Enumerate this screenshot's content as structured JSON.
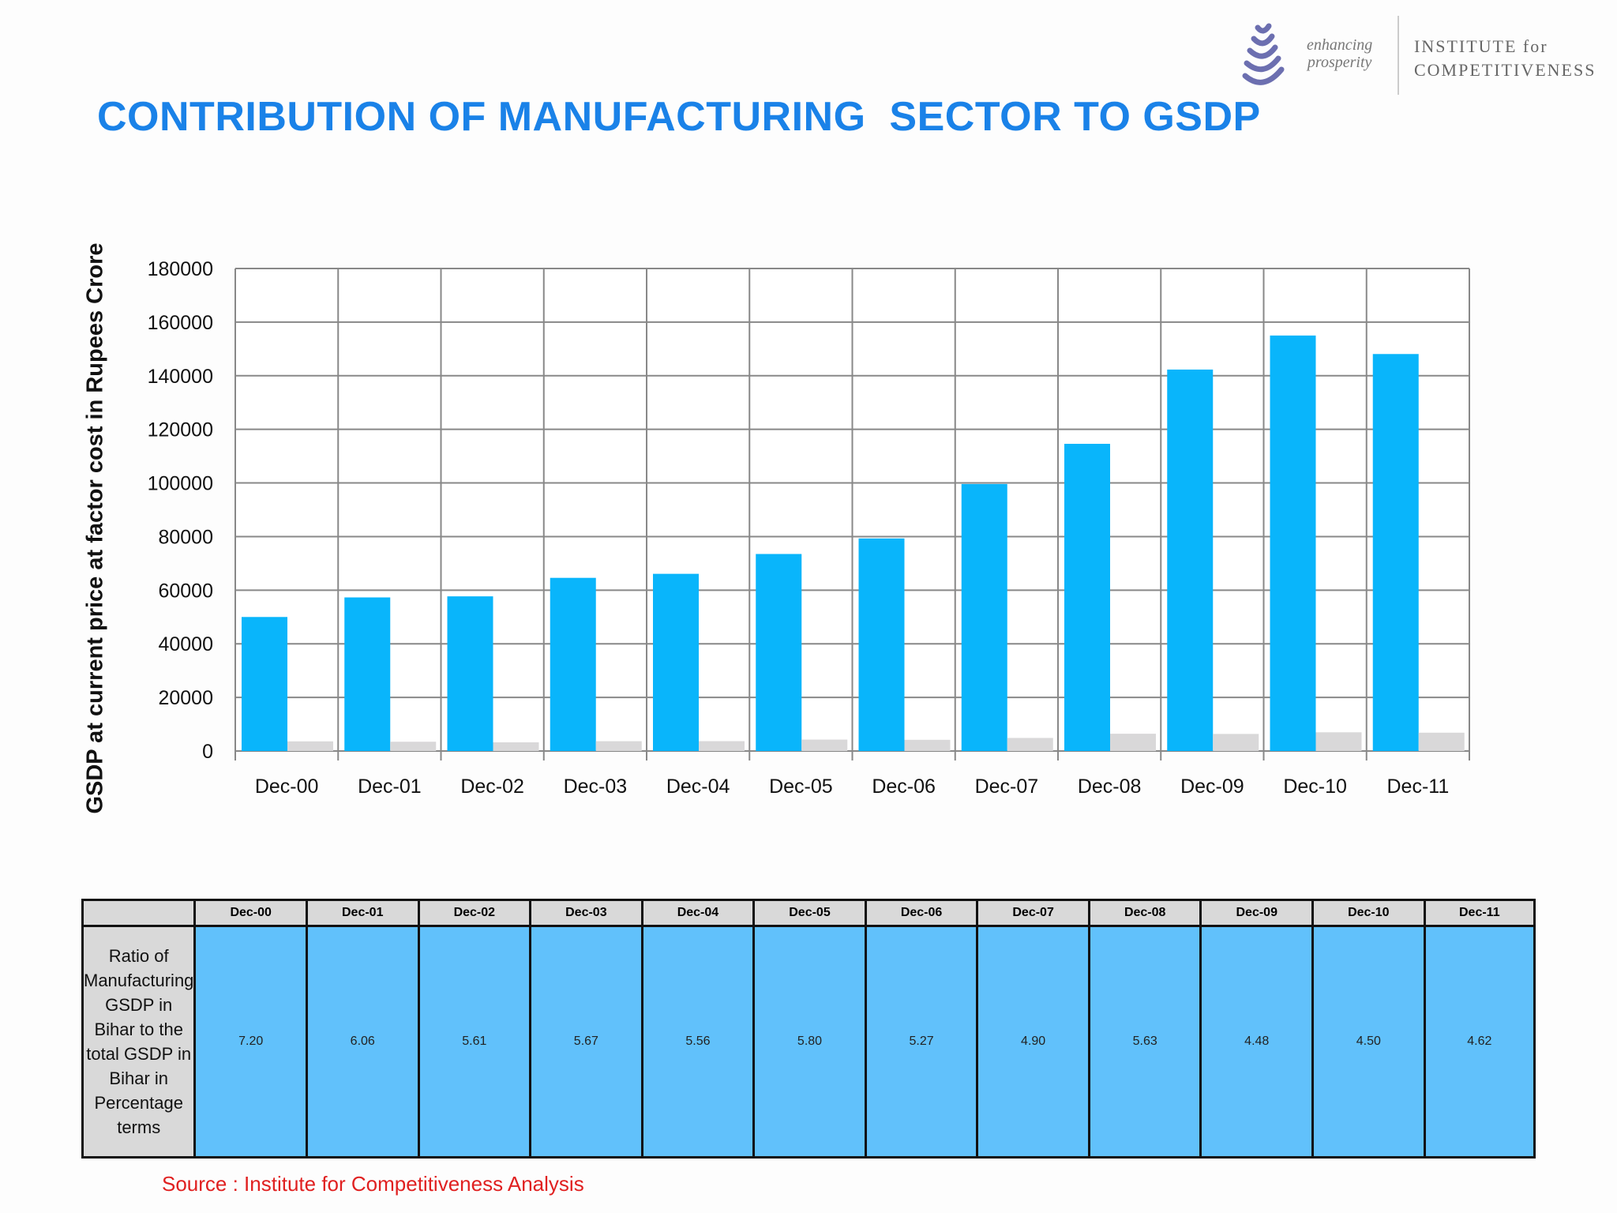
{
  "title": "CONTRIBUTION OF MANUFACTURING  SECTOR TO GSDP",
  "logo": {
    "tagline_1": "enhancing",
    "tagline_2": "prosperity",
    "name_1": "INSTITUTE for",
    "name_2": "COMPETITIVENESS"
  },
  "chart_data": {
    "type": "bar",
    "title": "",
    "xlabel": "",
    "ylabel": "GSDP at current price at factor cost in Rupees Crore",
    "ylim": [
      0,
      180000
    ],
    "yticks": [
      0,
      20000,
      40000,
      60000,
      80000,
      100000,
      120000,
      140000,
      160000,
      180000
    ],
    "grid": true,
    "categories": [
      "Dec-00",
      "Dec-01",
      "Dec-02",
      "Dec-03",
      "Dec-04",
      "Dec-05",
      "Dec-06",
      "Dec-07",
      "Dec-08",
      "Dec-09",
      "Dec-10",
      "Dec-11"
    ],
    "series": [
      {
        "color": "#09b5fb",
        "values": [
          50000,
          57300,
          57700,
          64600,
          66100,
          73500,
          79300,
          99600,
          114600,
          142300,
          155000,
          148100
        ]
      },
      {
        "color": "#d9d8d9",
        "values": [
          3600,
          3470,
          3240,
          3660,
          3680,
          4260,
          4180,
          4880,
          6450,
          6380,
          6980,
          6840
        ]
      }
    ]
  },
  "table": {
    "headers": [
      "Dec-00",
      "Dec-01",
      "Dec-02",
      "Dec-03",
      "Dec-04",
      "Dec-05",
      "Dec-06",
      "Dec-07",
      "Dec-08",
      "Dec-09",
      "Dec-10",
      "Dec-11"
    ],
    "row_label": "Ratio of Manufacturing GSDP  in Bihar to the total GSDP in Bihar in Percentage terms",
    "values": [
      "7.20",
      "6.06",
      "5.61",
      "5.67",
      "5.56",
      "5.80",
      "5.27",
      "4.90",
      "5.63",
      "4.48",
      "4.50",
      "4.62"
    ]
  },
  "source": "Source : Institute for Competitiveness Analysis"
}
